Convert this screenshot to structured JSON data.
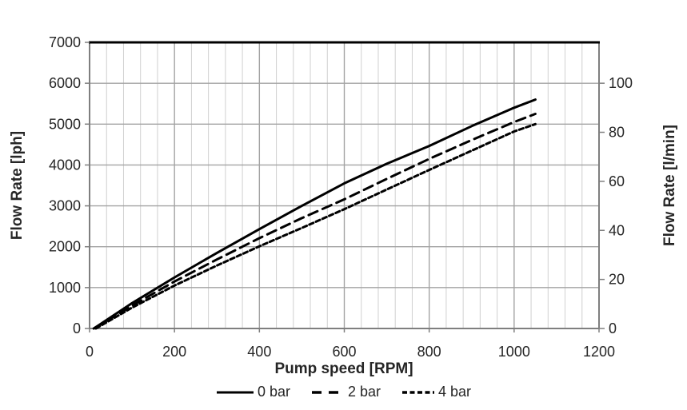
{
  "chart_data": {
    "type": "line",
    "title": "",
    "xlabel": "Pump speed [RPM]",
    "ylabel_left": "Flow Rate [lph]",
    "ylabel_right": "Flow Rate [l/min]",
    "xlim": [
      0,
      1200
    ],
    "ylim_left": [
      0,
      7000
    ],
    "x_major_step": 200,
    "x_minor_step": 40,
    "y_left_major_step": 1000,
    "y_right_major_step": 20,
    "lph_per_lmin": 60,
    "x_tick_labels": [
      "0",
      "200",
      "400",
      "600",
      "800",
      "1000",
      "1200"
    ],
    "y_left_tick_labels": [
      "0",
      "1000",
      "2000",
      "3000",
      "4000",
      "5000",
      "6000",
      "7000"
    ],
    "y_right_tick_labels": [
      "0",
      "20",
      "40",
      "60",
      "80",
      "100"
    ],
    "grid": {
      "vertical_minor": true,
      "vertical_major": true,
      "horizontal_major": true
    },
    "legend_position": "bottom",
    "series": [
      {
        "name": "0 bar",
        "style": "solid",
        "points": [
          [
            10,
            0
          ],
          [
            100,
            620
          ],
          [
            200,
            1250
          ],
          [
            300,
            1850
          ],
          [
            400,
            2430
          ],
          [
            500,
            3000
          ],
          [
            600,
            3550
          ],
          [
            700,
            4030
          ],
          [
            800,
            4465
          ],
          [
            900,
            4950
          ],
          [
            1000,
            5400
          ],
          [
            1050,
            5600
          ]
        ]
      },
      {
        "name": "2 bar",
        "style": "long-dash",
        "points": [
          [
            10,
            0
          ],
          [
            100,
            560
          ],
          [
            200,
            1150
          ],
          [
            300,
            1690
          ],
          [
            400,
            2210
          ],
          [
            500,
            2700
          ],
          [
            600,
            3160
          ],
          [
            700,
            3660
          ],
          [
            800,
            4150
          ],
          [
            900,
            4610
          ],
          [
            1000,
            5050
          ],
          [
            1050,
            5250
          ]
        ]
      },
      {
        "name": "4 bar",
        "style": "short-dash",
        "points": [
          [
            15,
            0
          ],
          [
            100,
            510
          ],
          [
            200,
            1050
          ],
          [
            300,
            1540
          ],
          [
            400,
            2010
          ],
          [
            500,
            2460
          ],
          [
            600,
            2920
          ],
          [
            700,
            3400
          ],
          [
            800,
            3880
          ],
          [
            900,
            4350
          ],
          [
            1000,
            4820
          ],
          [
            1050,
            5000
          ]
        ]
      }
    ]
  },
  "colors": {
    "series_line": "#000000",
    "grid_minor": "#d0d0d0",
    "grid_major": "#a3a3a3",
    "axis_line": "#7f7f7f",
    "plot_top_border": "#000000",
    "text": "#262626",
    "background": "#ffffff"
  }
}
